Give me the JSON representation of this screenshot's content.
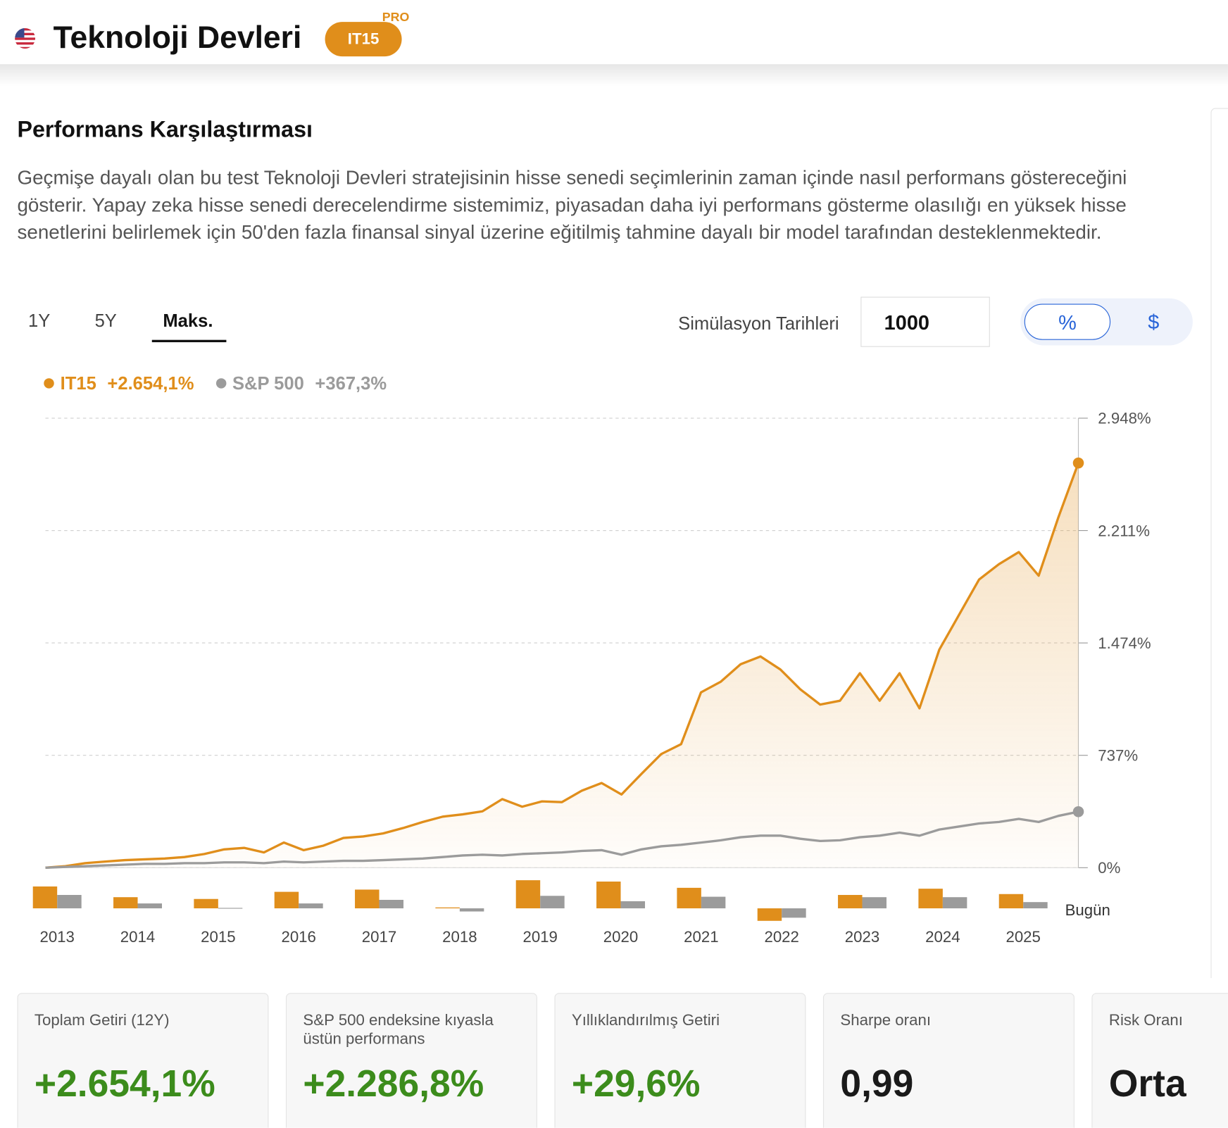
{
  "header": {
    "title": "Teknoloji Devleri",
    "badge": "IT15",
    "badge_tier": "PRO"
  },
  "section": {
    "title": "Performans Karşılaştırması",
    "description": "Geçmişe dayalı olan bu test Teknoloji Devleri stratejisinin hisse senedi seçimlerinin zaman içinde nasıl performans göstereceğini gösterir. Yapay zeka hisse senedi derecelendirme sistemimiz, piyasadan daha iyi performans gösterme olasılığı en yüksek hisse senetlerini belirlemek için 50'den fazla finansal sinyal üzerine eğitilmiş tahmine dayalı bir model tarafından desteklenmektedir."
  },
  "controls": {
    "periods": [
      "1Y",
      "5Y",
      "Maks."
    ],
    "selected_period": 2,
    "simulation_label": "Simülasyon Tarihleri",
    "simulation_amount": "1000",
    "units": [
      "%",
      "$"
    ],
    "selected_unit": 0
  },
  "chart_data": [
    {
      "type": "line",
      "area": true,
      "grid": true,
      "series": [
        {
          "name": "IT15",
          "color": "#e08e1b",
          "total_label": "+2.654,1%",
          "values": [
            0,
            10,
            30,
            40,
            50,
            55,
            60,
            70,
            90,
            120,
            130,
            100,
            165,
            115,
            145,
            195,
            205,
            225,
            260,
            300,
            335,
            350,
            370,
            450,
            400,
            435,
            430,
            505,
            555,
            480,
            615,
            745,
            810,
            1150,
            1220,
            1335,
            1385,
            1300,
            1170,
            1070,
            1095,
            1275,
            1095,
            1275,
            1045,
            1430,
            1660,
            1890,
            1990,
            2070,
            1915,
            2300,
            2654.1
          ]
        },
        {
          "name": "S&P 500",
          "color": "#9b9b9b",
          "total_label": "+367,3%",
          "values": [
            0,
            5,
            10,
            15,
            20,
            25,
            25,
            30,
            30,
            35,
            35,
            30,
            40,
            35,
            40,
            45,
            45,
            50,
            55,
            60,
            70,
            80,
            85,
            80,
            90,
            95,
            100,
            110,
            115,
            85,
            120,
            140,
            150,
            165,
            180,
            200,
            210,
            210,
            190,
            175,
            180,
            200,
            210,
            230,
            210,
            250,
            270,
            290,
            300,
            320,
            300,
            340,
            367.3
          ]
        }
      ],
      "ylim": [
        0,
        2948
      ],
      "yticks": [
        {
          "value": 0,
          "label": "0%"
        },
        {
          "value": 737,
          "label": "737%"
        },
        {
          "value": 1474,
          "label": "1.474%"
        },
        {
          "value": 2211,
          "label": "2.211%"
        },
        {
          "value": 2948,
          "label": "2.948%"
        }
      ]
    },
    {
      "type": "bar",
      "categories": [
        "2013",
        "2014",
        "2015",
        "2016",
        "2017",
        "2018",
        "2019",
        "2020",
        "2021",
        "2022",
        "2023",
        "2024",
        "2025"
      ],
      "series": [
        {
          "color": "#e08e1b",
          "values": [
            49,
            25,
            21,
            37,
            42,
            2,
            63,
            60,
            46,
            -28,
            30,
            44,
            32
          ]
        },
        {
          "color": "#9b9b9b",
          "values": [
            30,
            11,
            1,
            11,
            19,
            -7,
            28,
            16,
            26,
            -21,
            25,
            25,
            14
          ]
        }
      ],
      "ylim": [
        -30,
        70
      ],
      "annotation": "Bugün"
    }
  ],
  "stats": [
    {
      "label": "Toplam Getiri (12Y)",
      "value": "+2.654,1%",
      "positive": true
    },
    {
      "label": "S&P 500 endeksine kıyasla üstün performans",
      "value": "+2.286,8%",
      "positive": true
    },
    {
      "label": "Yıllıklandırılmış Getiri",
      "value": "+29,6%",
      "positive": true
    },
    {
      "label": "Sharpe oranı",
      "value": "0,99",
      "positive": false
    },
    {
      "label": "Risk Oranı",
      "value": "Orta",
      "positive": false
    }
  ]
}
